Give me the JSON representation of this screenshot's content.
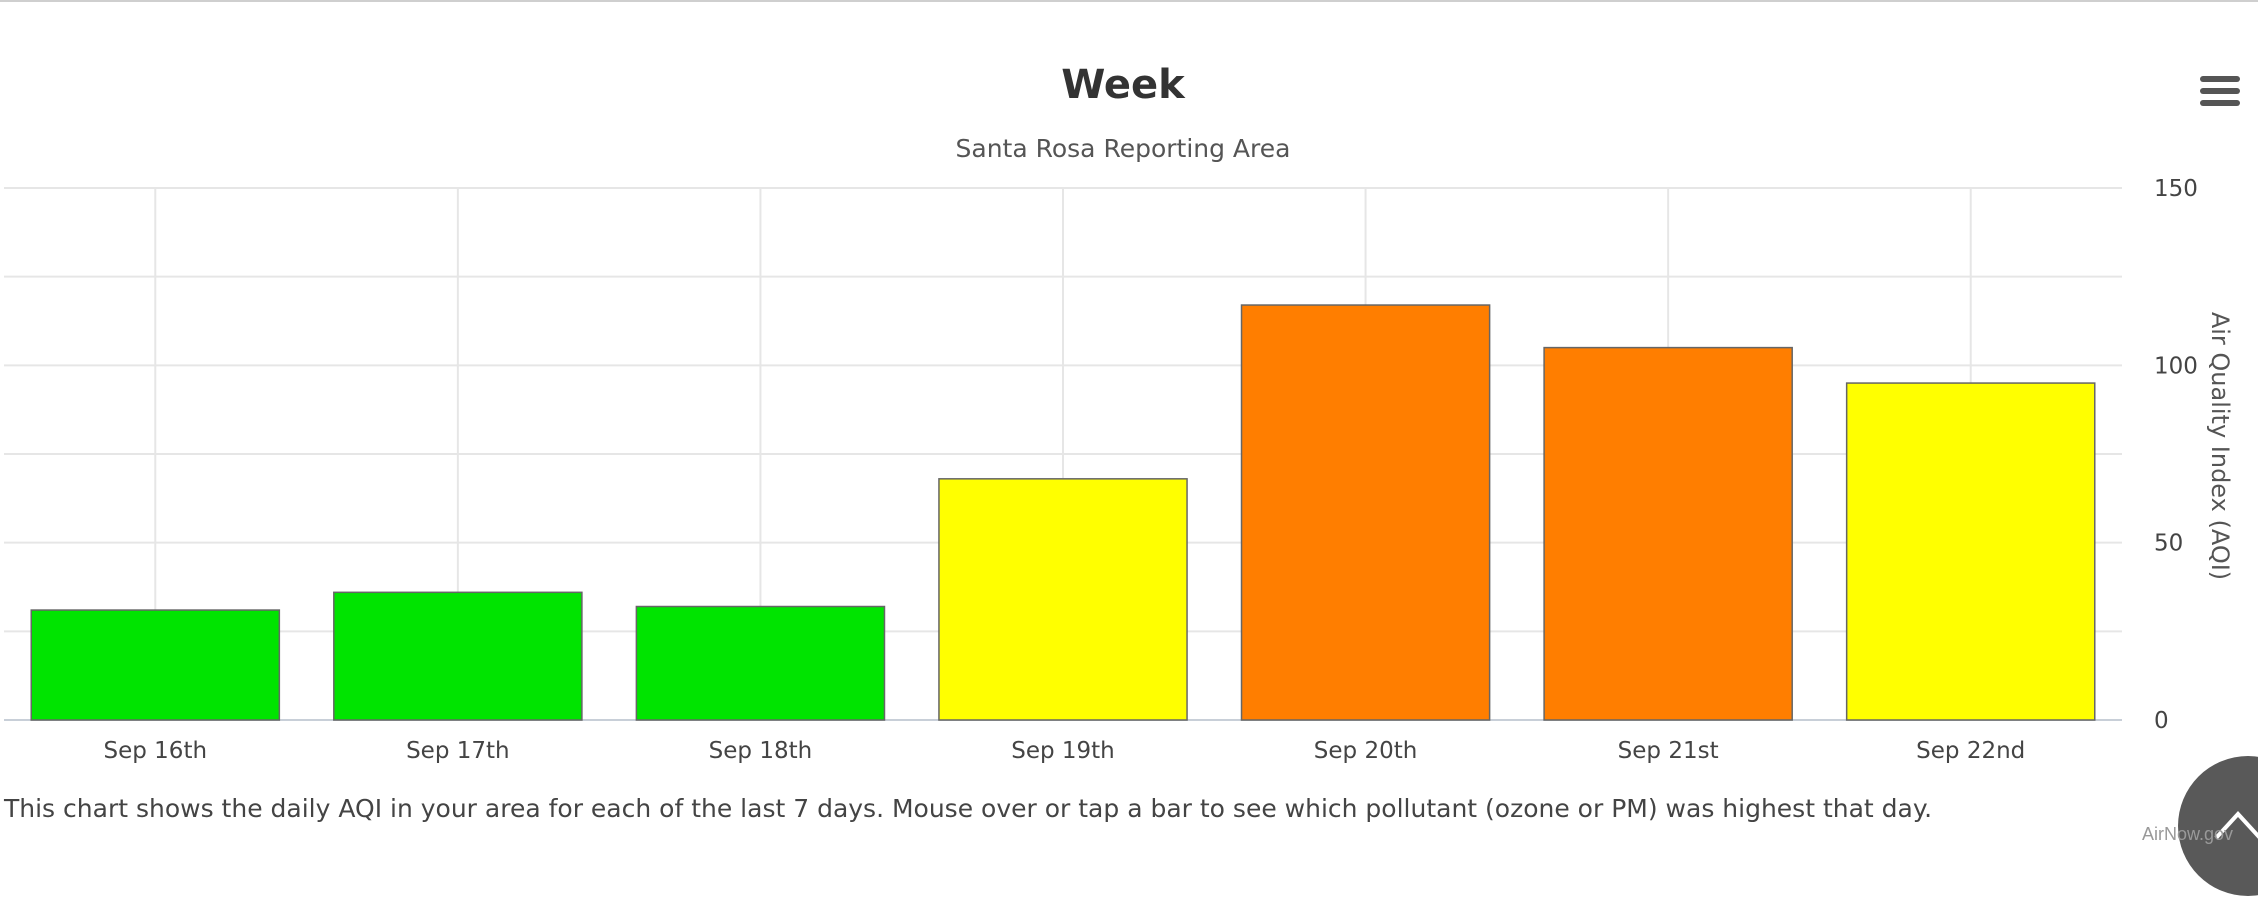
{
  "chart_data": {
    "type": "bar",
    "title": "Week",
    "subtitle": "Santa Rosa Reporting Area",
    "categories": [
      "Sep 16th",
      "Sep 17th",
      "Sep 18th",
      "Sep 19th",
      "Sep 20th",
      "Sep 21st",
      "Sep 22nd"
    ],
    "values": [
      31,
      36,
      32,
      68,
      117,
      105,
      95
    ],
    "bar_colors": [
      "#00e400",
      "#00e400",
      "#00e400",
      "#ffff00",
      "#ff7e00",
      "#ff7e00",
      "#ffff00"
    ],
    "ylabel": "Air Quality Index (AQI)",
    "ylim": [
      0,
      150
    ],
    "yticks": [
      0,
      50,
      100,
      150
    ],
    "y_axis_side": "right",
    "grid": true
  },
  "caption": "This chart shows the daily AQI in your area for each of the last 7 days. Mouse over or tap a bar to see which pollutant (ozone or PM) was highest that day.",
  "credit": "AirNow.gov",
  "icons": {
    "menu": "hamburger-menu-icon",
    "scroll_top": "chevron-up-icon"
  }
}
